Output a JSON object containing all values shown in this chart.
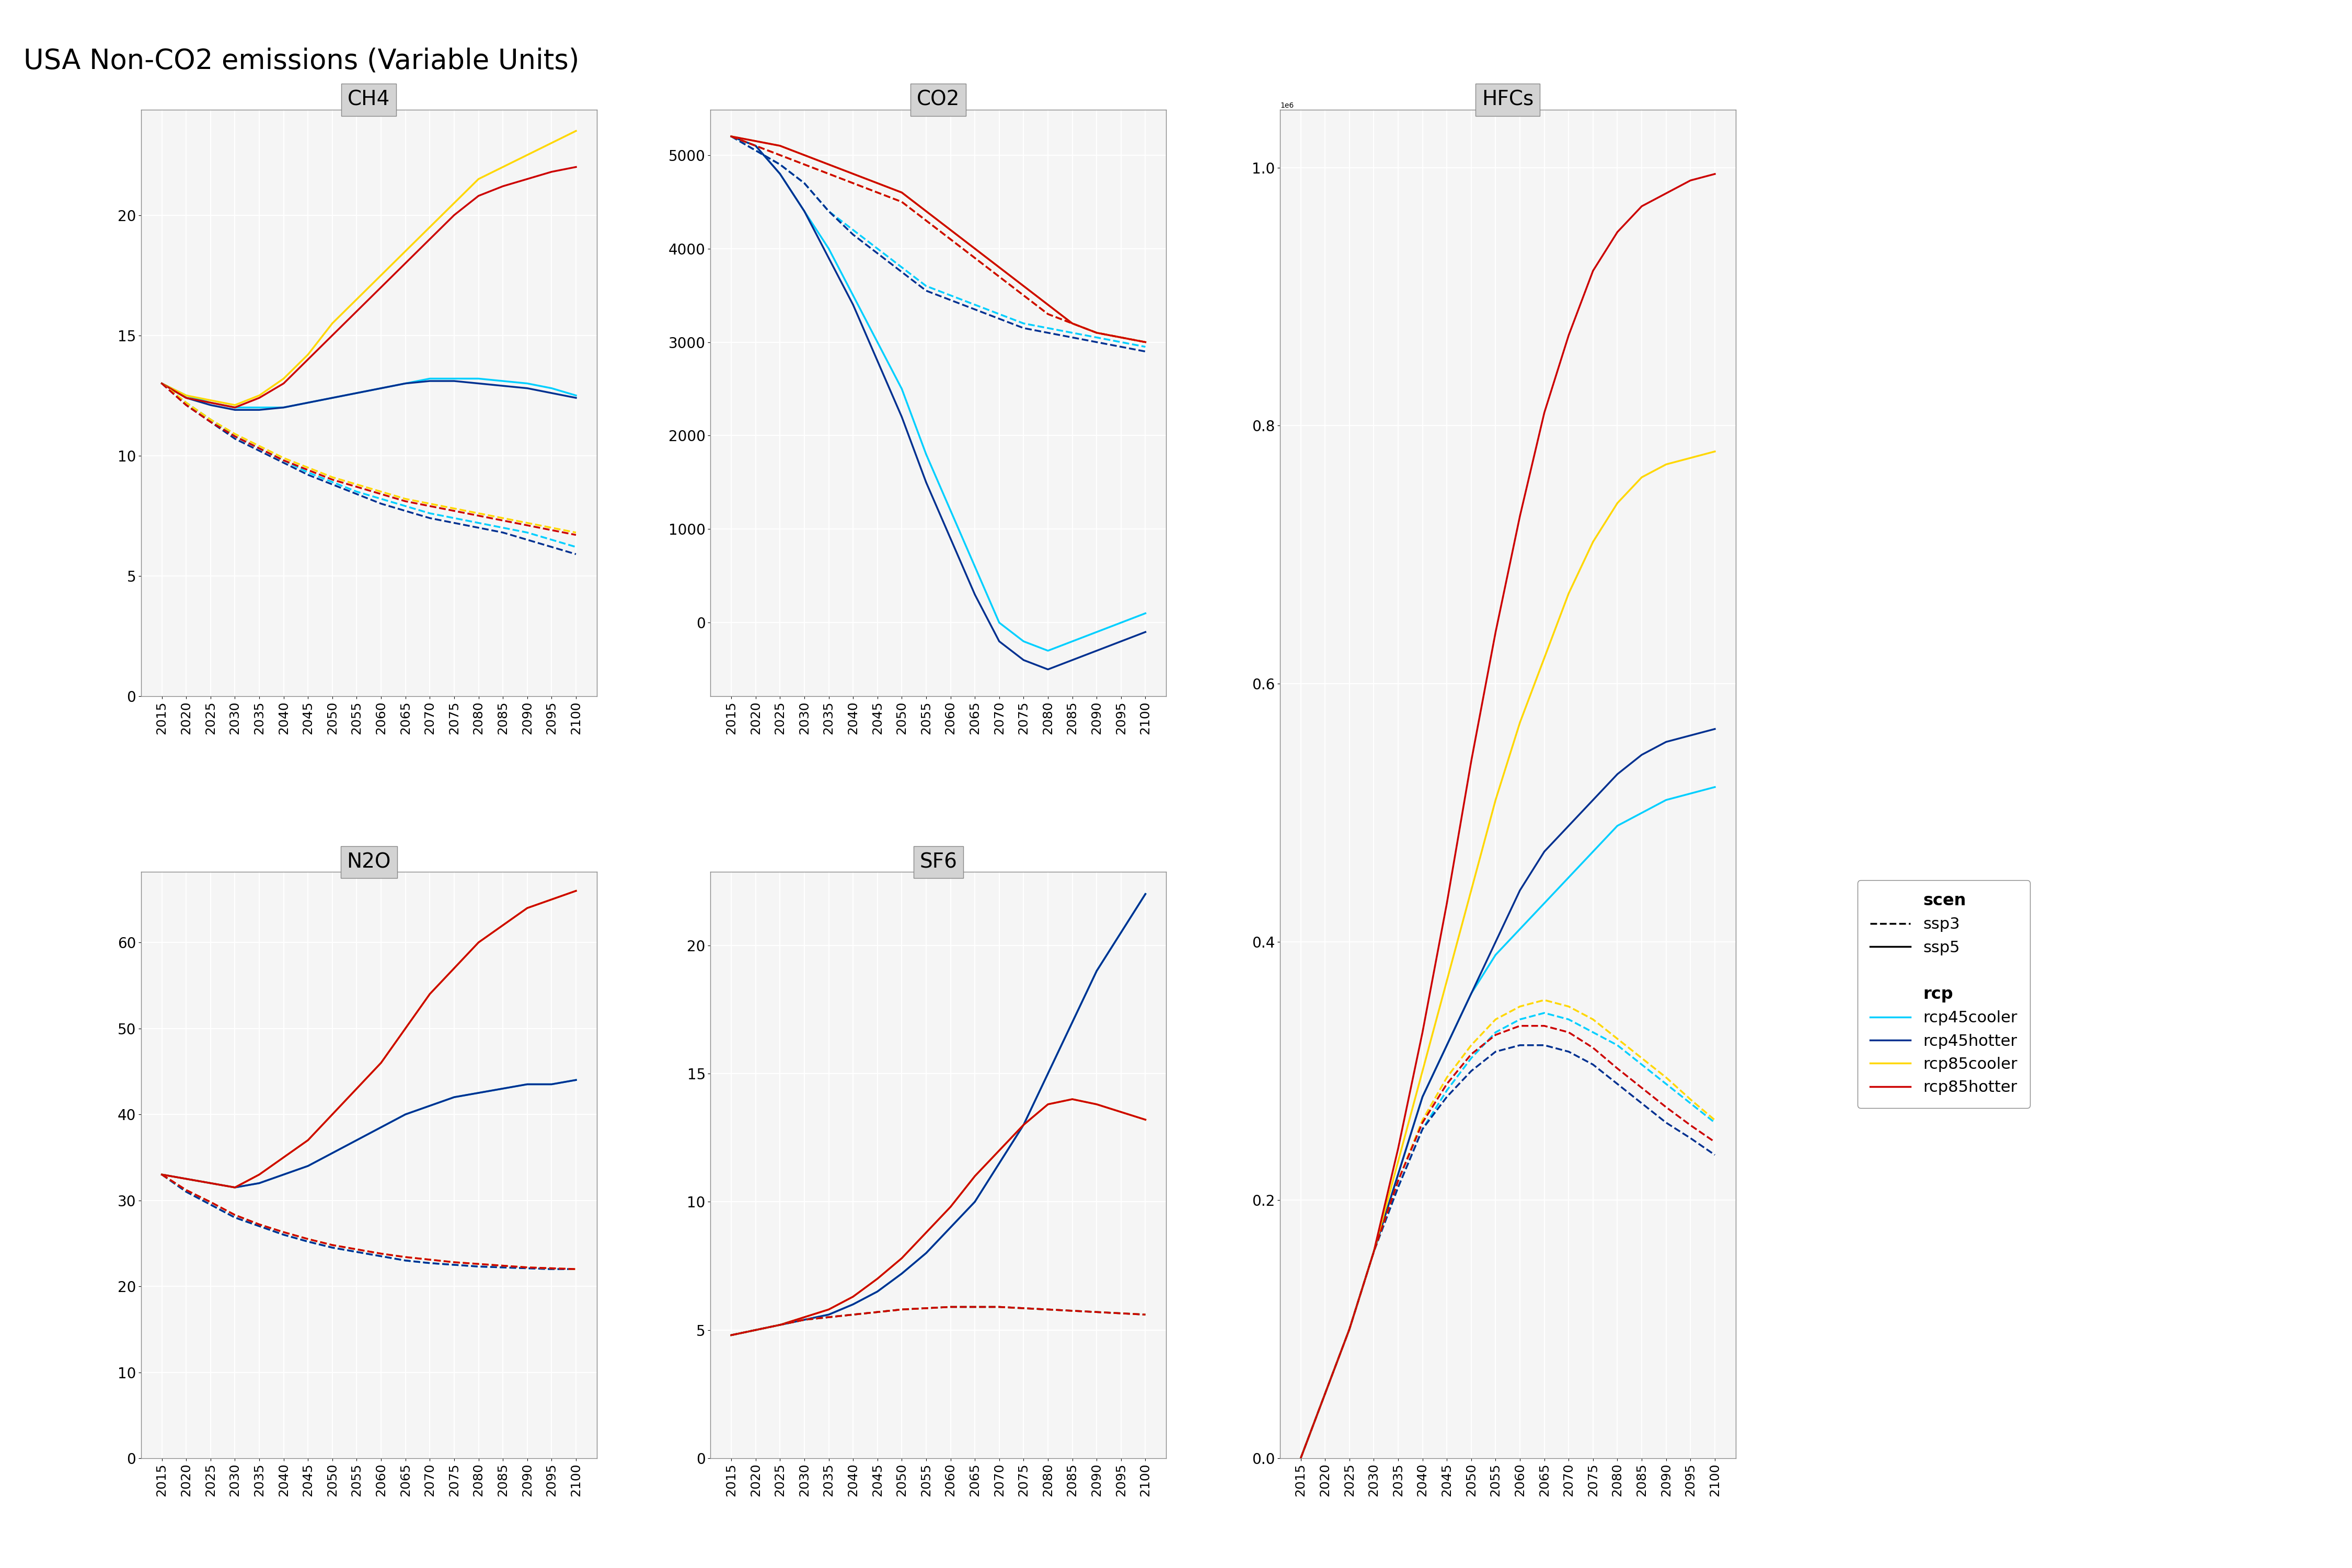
{
  "title": "USA Non-CO2 emissions (Variable Units)",
  "years": [
    2015,
    2020,
    2025,
    2030,
    2035,
    2040,
    2045,
    2050,
    2055,
    2060,
    2065,
    2070,
    2075,
    2080,
    2085,
    2090,
    2095,
    2100
  ],
  "colors": {
    "rcp45cooler": "#00BFFF",
    "rcp45hotter": "#00008B",
    "rcp85cooler": "#FFD700",
    "rcp85hotter": "#CC0000"
  },
  "CH4": {
    "ssp5_rcp45cooler": [
      13.0,
      12.5,
      12.2,
      12.0,
      12.0,
      12.0,
      12.2,
      12.4,
      12.6,
      12.8,
      13.0,
      13.2,
      13.2,
      13.2,
      13.1,
      13.0,
      12.8,
      12.5
    ],
    "ssp5_rcp45hotter": [
      13.0,
      12.4,
      12.1,
      11.9,
      11.9,
      12.0,
      12.2,
      12.4,
      12.6,
      12.8,
      13.0,
      13.1,
      13.1,
      13.0,
      12.9,
      12.8,
      12.6,
      12.4
    ],
    "ssp5_rcp85cooler": [
      13.0,
      12.5,
      12.3,
      12.1,
      12.5,
      13.2,
      14.2,
      15.5,
      16.5,
      17.5,
      18.5,
      19.5,
      20.5,
      21.5,
      22.0,
      22.5,
      23.0,
      23.5
    ],
    "ssp5_rcp85hotter": [
      13.0,
      12.4,
      12.2,
      12.0,
      12.4,
      13.0,
      14.0,
      15.0,
      16.0,
      17.0,
      18.0,
      19.0,
      20.0,
      20.8,
      21.2,
      21.5,
      21.8,
      22.0
    ],
    "ssp3_rcp45cooler": [
      13.0,
      12.2,
      11.5,
      10.8,
      10.3,
      9.8,
      9.3,
      8.9,
      8.5,
      8.2,
      7.9,
      7.6,
      7.4,
      7.2,
      7.0,
      6.8,
      6.5,
      6.2
    ],
    "ssp3_rcp45hotter": [
      13.0,
      12.1,
      11.4,
      10.7,
      10.2,
      9.7,
      9.2,
      8.8,
      8.4,
      8.0,
      7.7,
      7.4,
      7.2,
      7.0,
      6.8,
      6.5,
      6.2,
      5.9
    ],
    "ssp3_rcp85cooler": [
      13.0,
      12.2,
      11.5,
      10.9,
      10.4,
      9.9,
      9.5,
      9.1,
      8.8,
      8.5,
      8.2,
      8.0,
      7.8,
      7.6,
      7.4,
      7.2,
      7.0,
      6.8
    ],
    "ssp3_rcp85hotter": [
      13.0,
      12.1,
      11.4,
      10.8,
      10.3,
      9.8,
      9.4,
      9.0,
      8.7,
      8.4,
      8.1,
      7.9,
      7.7,
      7.5,
      7.3,
      7.1,
      6.9,
      6.7
    ]
  },
  "CO2": {
    "ssp5_rcp45cooler": [
      5200,
      5100,
      4800,
      4400,
      4000,
      3500,
      3000,
      2500,
      1800,
      1200,
      600,
      0,
      -200,
      -300,
      -200,
      -100,
      0,
      100
    ],
    "ssp5_rcp45hotter": [
      5200,
      5100,
      4800,
      4400,
      3900,
      3400,
      2800,
      2200,
      1500,
      900,
      300,
      -200,
      -400,
      -500,
      -400,
      -300,
      -200,
      -100
    ],
    "ssp5_rcp85cooler": [
      5200,
      5150,
      5100,
      5000,
      4900,
      4800,
      4700,
      4600,
      4400,
      4200,
      4000,
      3800,
      3600,
      3400,
      3200,
      3100,
      3050,
      3000
    ],
    "ssp5_rcp85hotter": [
      5200,
      5150,
      5100,
      5000,
      4900,
      4800,
      4700,
      4600,
      4400,
      4200,
      4000,
      3800,
      3600,
      3400,
      3200,
      3100,
      3050,
      3000
    ],
    "ssp3_rcp45cooler": [
      5200,
      5050,
      4900,
      4700,
      4400,
      4200,
      4000,
      3800,
      3600,
      3500,
      3400,
      3300,
      3200,
      3150,
      3100,
      3050,
      3000,
      2950
    ],
    "ssp3_rcp45hotter": [
      5200,
      5050,
      4900,
      4700,
      4400,
      4150,
      3950,
      3750,
      3550,
      3450,
      3350,
      3250,
      3150,
      3100,
      3050,
      3000,
      2950,
      2900
    ],
    "ssp3_rcp85cooler": [
      5200,
      5100,
      5000,
      4900,
      4800,
      4700,
      4600,
      4500,
      4300,
      4100,
      3900,
      3700,
      3500,
      3300,
      3200,
      3100,
      3050,
      3000
    ],
    "ssp3_rcp85hotter": [
      5200,
      5100,
      5000,
      4900,
      4800,
      4700,
      4600,
      4500,
      4300,
      4100,
      3900,
      3700,
      3500,
      3300,
      3200,
      3100,
      3050,
      3000
    ]
  },
  "HFCs": {
    "ssp5_rcp45cooler": [
      0,
      50000,
      100000,
      160000,
      220000,
      280000,
      320000,
      360000,
      390000,
      410000,
      430000,
      450000,
      470000,
      490000,
      500000,
      510000,
      515000,
      520000
    ],
    "ssp5_rcp45hotter": [
      0,
      50000,
      100000,
      160000,
      220000,
      280000,
      320000,
      360000,
      400000,
      440000,
      470000,
      490000,
      510000,
      530000,
      545000,
      555000,
      560000,
      565000
    ],
    "ssp5_rcp85cooler": [
      0,
      50000,
      100000,
      160000,
      230000,
      300000,
      370000,
      440000,
      510000,
      570000,
      620000,
      670000,
      710000,
      740000,
      760000,
      770000,
      775000,
      780000
    ],
    "ssp5_rcp85hotter": [
      0,
      50000,
      100000,
      160000,
      240000,
      330000,
      430000,
      540000,
      640000,
      730000,
      810000,
      870000,
      920000,
      950000,
      970000,
      980000,
      990000,
      995000
    ],
    "ssp3_rcp45cooler": [
      0,
      50000,
      100000,
      160000,
      210000,
      255000,
      285000,
      310000,
      330000,
      340000,
      345000,
      340000,
      330000,
      320000,
      305000,
      290000,
      275000,
      260000
    ],
    "ssp3_rcp45hotter": [
      0,
      50000,
      100000,
      160000,
      210000,
      255000,
      280000,
      300000,
      315000,
      320000,
      320000,
      315000,
      305000,
      290000,
      275000,
      260000,
      248000,
      235000
    ],
    "ssp3_rcp85cooler": [
      0,
      50000,
      100000,
      160000,
      215000,
      262000,
      295000,
      320000,
      340000,
      350000,
      355000,
      350000,
      340000,
      325000,
      310000,
      295000,
      278000,
      262000
    ],
    "ssp3_rcp85hotter": [
      0,
      50000,
      100000,
      160000,
      215000,
      260000,
      290000,
      313000,
      328000,
      335000,
      335000,
      330000,
      318000,
      302000,
      287000,
      272000,
      258000,
      245000
    ]
  },
  "N2O": {
    "ssp5_rcp45cooler": [
      33,
      32.5,
      32,
      31.5,
      32,
      33,
      34,
      35.5,
      37,
      38.5,
      40,
      41,
      42,
      42.5,
      43,
      43.5,
      43.5,
      44
    ],
    "ssp5_rcp45hotter": [
      33,
      32.5,
      32,
      31.5,
      32,
      33,
      34,
      35.5,
      37,
      38.5,
      40,
      41,
      42,
      42.5,
      43,
      43.5,
      43.5,
      44
    ],
    "ssp5_rcp85cooler": [
      33,
      32.5,
      32,
      31.5,
      33,
      35,
      37,
      40,
      43,
      46,
      50,
      54,
      57,
      60,
      62,
      64,
      65,
      66
    ],
    "ssp5_rcp85hotter": [
      33,
      32.5,
      32,
      31.5,
      33,
      35,
      37,
      40,
      43,
      46,
      50,
      54,
      57,
      60,
      62,
      64,
      65,
      66
    ],
    "ssp3_rcp45cooler": [
      33,
      31,
      29.5,
      28,
      27,
      26,
      25.2,
      24.5,
      24,
      23.5,
      23,
      22.7,
      22.5,
      22.3,
      22.2,
      22.1,
      22,
      22
    ],
    "ssp3_rcp45hotter": [
      33,
      31,
      29.5,
      28,
      27,
      26,
      25.2,
      24.5,
      24,
      23.5,
      23,
      22.7,
      22.5,
      22.3,
      22.2,
      22.1,
      22,
      22
    ],
    "ssp3_rcp85cooler": [
      33,
      31.2,
      29.8,
      28.3,
      27.2,
      26.3,
      25.5,
      24.8,
      24.3,
      23.8,
      23.4,
      23.1,
      22.8,
      22.6,
      22.4,
      22.2,
      22.1,
      22
    ],
    "ssp3_rcp85hotter": [
      33,
      31.2,
      29.8,
      28.3,
      27.2,
      26.3,
      25.5,
      24.8,
      24.3,
      23.8,
      23.4,
      23.1,
      22.8,
      22.6,
      22.4,
      22.2,
      22.1,
      22
    ]
  },
  "SF6": {
    "ssp5_rcp45cooler": [
      4.8,
      5.0,
      5.2,
      5.4,
      5.6,
      6.0,
      6.5,
      7.2,
      8.0,
      9.0,
      10.0,
      11.5,
      13.0,
      15.0,
      17.0,
      19.0,
      20.5,
      22.0
    ],
    "ssp5_rcp45hotter": [
      4.8,
      5.0,
      5.2,
      5.4,
      5.6,
      6.0,
      6.5,
      7.2,
      8.0,
      9.0,
      10.0,
      11.5,
      13.0,
      15.0,
      17.0,
      19.0,
      20.5,
      22.0
    ],
    "ssp5_rcp85cooler": [
      4.8,
      5.0,
      5.2,
      5.5,
      5.8,
      6.3,
      7.0,
      7.8,
      8.8,
      9.8,
      11.0,
      12.0,
      13.0,
      13.8,
      14.0,
      13.8,
      13.5,
      13.2
    ],
    "ssp5_rcp85hotter": [
      4.8,
      5.0,
      5.2,
      5.5,
      5.8,
      6.3,
      7.0,
      7.8,
      8.8,
      9.8,
      11.0,
      12.0,
      13.0,
      13.8,
      14.0,
      13.8,
      13.5,
      13.2
    ],
    "ssp3_rcp45cooler": [
      4.8,
      5.0,
      5.2,
      5.4,
      5.5,
      5.6,
      5.7,
      5.8,
      5.85,
      5.9,
      5.9,
      5.9,
      5.85,
      5.8,
      5.75,
      5.7,
      5.65,
      5.6
    ],
    "ssp3_rcp45hotter": [
      4.8,
      5.0,
      5.2,
      5.4,
      5.5,
      5.6,
      5.7,
      5.8,
      5.85,
      5.9,
      5.9,
      5.9,
      5.85,
      5.8,
      5.75,
      5.7,
      5.65,
      5.6
    ],
    "ssp3_rcp85cooler": [
      4.8,
      5.0,
      5.2,
      5.4,
      5.5,
      5.6,
      5.7,
      5.8,
      5.85,
      5.9,
      5.9,
      5.9,
      5.85,
      5.8,
      5.75,
      5.7,
      5.65,
      5.6
    ],
    "ssp3_rcp85hotter": [
      4.8,
      5.0,
      5.2,
      5.4,
      5.5,
      5.6,
      5.7,
      5.8,
      5.85,
      5.9,
      5.9,
      5.9,
      5.85,
      5.8,
      5.75,
      5.7,
      5.65,
      5.6
    ]
  },
  "panel_bg": "#f5f5f5",
  "header_bg": "#d3d3d3",
  "grid_color": "#ffffff",
  "line_width": 2.5
}
